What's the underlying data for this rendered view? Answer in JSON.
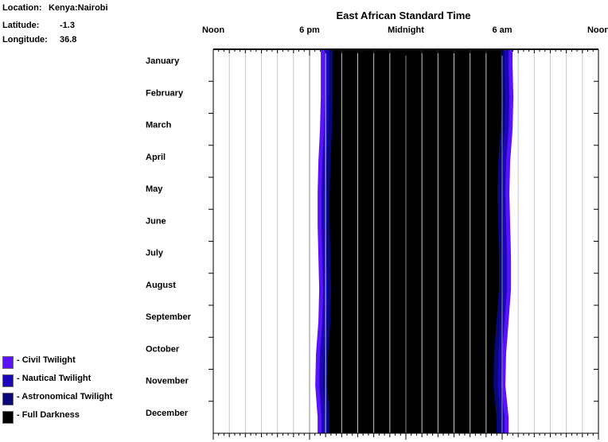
{
  "info": {
    "location_label": "Location:",
    "location_value": "Kenya:Nairobi",
    "latitude_label": "Latitude:",
    "latitude_value": "-1.3",
    "longitude_label": "Longitude:",
    "longitude_value": "36.8"
  },
  "legend": [
    {
      "label": "- Civil Twilight",
      "color": "#5b12ff"
    },
    {
      "label": "- Nautical Twilight",
      "color": "#1b06b8"
    },
    {
      "label": "- Astronomical Twilight",
      "color": "#08087a"
    },
    {
      "label": "- Full Darkness",
      "color": "#000000"
    }
  ],
  "chart_data": {
    "type": "area",
    "title": "East African Standard Time",
    "x_tick_labels": [
      {
        "label": "Noon",
        "hour": 12
      },
      {
        "label": "6 pm",
        "hour": 18
      },
      {
        "label": "Midnight",
        "hour": 24
      },
      {
        "label": "6 am",
        "hour": 30
      },
      {
        "label": "Noon",
        "hour": 36
      }
    ],
    "xlim": [
      12,
      36
    ],
    "y_categories": [
      "January",
      "February",
      "March",
      "April",
      "May",
      "June",
      "July",
      "August",
      "September",
      "October",
      "November",
      "December"
    ],
    "grid": true,
    "colors": {
      "civil": "#5b12ff",
      "nautical": "#1b06b8",
      "astronomical": "#08087a",
      "darkness": "#000000"
    },
    "series": [
      {
        "name": "Civil Twilight",
        "evening_start": [
          18.7,
          18.7,
          18.65,
          18.55,
          18.5,
          18.5,
          18.55,
          18.6,
          18.55,
          18.4,
          18.35,
          18.5
        ],
        "morning_end": [
          30.65,
          30.7,
          30.65,
          30.5,
          30.45,
          30.5,
          30.55,
          30.55,
          30.4,
          30.25,
          30.2,
          30.4
        ]
      },
      {
        "name": "Nautical Twilight",
        "evening_start": [
          18.95,
          18.95,
          18.9,
          18.8,
          18.75,
          18.75,
          18.8,
          18.85,
          18.8,
          18.65,
          18.6,
          18.75
        ],
        "morning_end": [
          30.4,
          30.45,
          30.4,
          30.25,
          30.2,
          30.25,
          30.3,
          30.3,
          30.15,
          30.0,
          29.95,
          30.15
        ]
      },
      {
        "name": "Astronomical Twilight",
        "evening_start": [
          19.2,
          19.2,
          19.15,
          19.05,
          19.0,
          19.0,
          19.05,
          19.1,
          19.05,
          18.9,
          18.85,
          19.0
        ],
        "morning_end": [
          30.15,
          30.2,
          30.15,
          30.0,
          29.95,
          30.0,
          30.05,
          30.05,
          29.9,
          29.75,
          29.7,
          29.9
        ]
      },
      {
        "name": "Full Darkness",
        "evening_start": [
          19.45,
          19.45,
          19.4,
          19.3,
          19.25,
          19.25,
          19.3,
          19.35,
          19.3,
          19.15,
          19.1,
          19.25
        ],
        "morning_end": [
          29.9,
          29.95,
          29.9,
          29.75,
          29.7,
          29.75,
          29.8,
          29.8,
          29.65,
          29.5,
          29.45,
          29.65
        ]
      }
    ]
  }
}
